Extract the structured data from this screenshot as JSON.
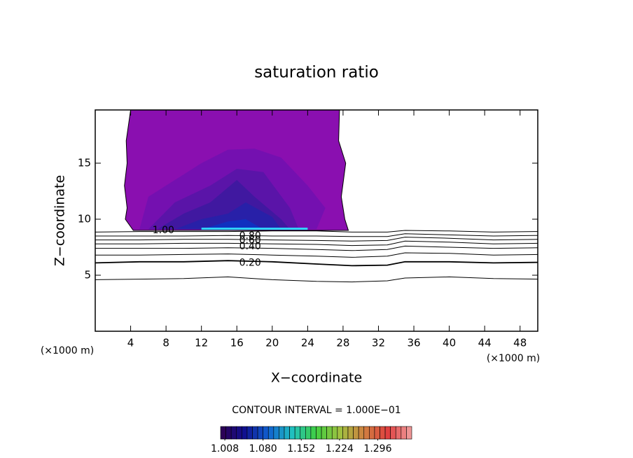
{
  "chart_data": {
    "type": "contour",
    "title": "saturation ratio",
    "xlabel": "X−coordinate",
    "ylabel": "Z−coordinate",
    "x_unit_labels": [
      "(×1000 m)",
      "(×1000 m)"
    ],
    "xlim": [
      0,
      50
    ],
    "ylim": [
      0,
      19.75
    ],
    "xticks": [
      4,
      8,
      12,
      16,
      20,
      24,
      28,
      32,
      36,
      40,
      44,
      48
    ],
    "yticks": [
      5,
      10,
      15
    ],
    "regions": [
      {
        "color": "#8a0fb0",
        "x": [
          4.0,
          3.5,
          3.6,
          3.3,
          3.6,
          3.4,
          4.3,
          28.6,
          28.2,
          27.8,
          28.3,
          27.5,
          27.6
        ],
        "z": [
          19.75,
          17,
          15,
          13,
          11,
          10,
          9,
          9,
          10,
          12,
          15,
          17,
          19.75
        ]
      },
      {
        "color": "#7410b0",
        "x": [
          5,
          6,
          9,
          12,
          15,
          18,
          21,
          24,
          26,
          25
        ],
        "z": [
          9.1,
          12,
          13.5,
          15,
          16.2,
          16.3,
          15.5,
          13,
          11,
          9.1
        ]
      },
      {
        "color": "#5a14a8",
        "x": [
          6,
          9,
          13,
          16,
          19,
          22,
          23
        ],
        "z": [
          9.1,
          11.5,
          13,
          14.5,
          14.2,
          11,
          9.1
        ]
      },
      {
        "color": "#4018a0",
        "x": [
          7,
          10,
          13,
          16,
          18,
          21,
          22
        ],
        "z": [
          9.1,
          10.5,
          11.5,
          13.5,
          12,
          10,
          9.1
        ]
      },
      {
        "color": "#2820a8",
        "x": [
          9,
          12,
          15,
          17,
          20,
          21
        ],
        "z": [
          9.1,
          10,
          10.5,
          11.5,
          10.2,
          9.1
        ]
      },
      {
        "color": "#1030c0",
        "x": [
          12,
          15,
          17,
          19
        ],
        "z": [
          9.1,
          9.8,
          10,
          9.1
        ]
      }
    ],
    "highlight": {
      "color": "#30d8ff",
      "x": [
        12,
        16,
        20,
        24
      ],
      "z": [
        9.15,
        9.15,
        9.15,
        9.15
      ]
    },
    "contour_x": [
      0,
      5,
      10,
      15,
      20,
      25,
      29,
      33,
      35,
      40,
      45,
      50
    ],
    "lines": [
      {
        "z": [
          8.85,
          8.9,
          8.9,
          8.9,
          8.95,
          8.95,
          8.85,
          8.85,
          9.0,
          8.95,
          8.85,
          8.9
        ]
      },
      {
        "z": [
          8.5,
          8.5,
          8.5,
          8.55,
          8.5,
          8.5,
          8.45,
          8.45,
          8.7,
          8.6,
          8.5,
          8.55
        ]
      },
      {
        "z": [
          8.15,
          8.15,
          8.2,
          8.2,
          8.15,
          8.1,
          8.05,
          8.1,
          8.4,
          8.3,
          8.15,
          8.2
        ]
      },
      {
        "z": [
          7.8,
          7.8,
          7.85,
          7.85,
          7.8,
          7.75,
          7.65,
          7.7,
          8.05,
          7.95,
          7.8,
          7.85
        ]
      },
      {
        "z": [
          7.4,
          7.4,
          7.4,
          7.45,
          7.4,
          7.3,
          7.2,
          7.3,
          7.6,
          7.5,
          7.4,
          7.45
        ]
      },
      {
        "z": [
          6.8,
          6.8,
          6.85,
          6.9,
          6.8,
          6.7,
          6.6,
          6.7,
          7.0,
          6.95,
          6.8,
          6.85
        ]
      },
      {
        "z": [
          6.1,
          6.2,
          6.2,
          6.3,
          6.2,
          6.0,
          5.85,
          5.9,
          6.2,
          6.2,
          6.1,
          6.15
        ]
      },
      {
        "z": [
          4.6,
          4.65,
          4.7,
          4.85,
          4.6,
          4.45,
          4.4,
          4.5,
          4.75,
          4.85,
          4.7,
          4.65
        ]
      }
    ],
    "contour_labels": [
      {
        "text": "1.00",
        "x": 7.7,
        "z": 9.0
      },
      {
        "text": "0.80",
        "x": 17.5,
        "z": 8.5
      },
      {
        "text": "0.60",
        "x": 17.5,
        "z": 8.1
      },
      {
        "text": "0.40",
        "x": 17.5,
        "z": 7.55
      },
      {
        "text": "0.20",
        "x": 17.5,
        "z": 6.1
      }
    ],
    "contour_interval": "CONTOUR INTERVAL = 1.000E−01",
    "colorbar": {
      "lim": [
        1.0,
        1.36
      ],
      "stripes": 36,
      "colors": [
        "#300050",
        "#101090",
        "#1060d0",
        "#20c0c0",
        "#40d040",
        "#a0c040",
        "#d08040",
        "#e04040",
        "#f0a0a0"
      ],
      "ticks": [
        1.008,
        1.08,
        1.152,
        1.224,
        1.296
      ],
      "tick_labels": [
        "1.008",
        "1.080",
        "1.152",
        "1.224",
        "1.296"
      ]
    }
  }
}
